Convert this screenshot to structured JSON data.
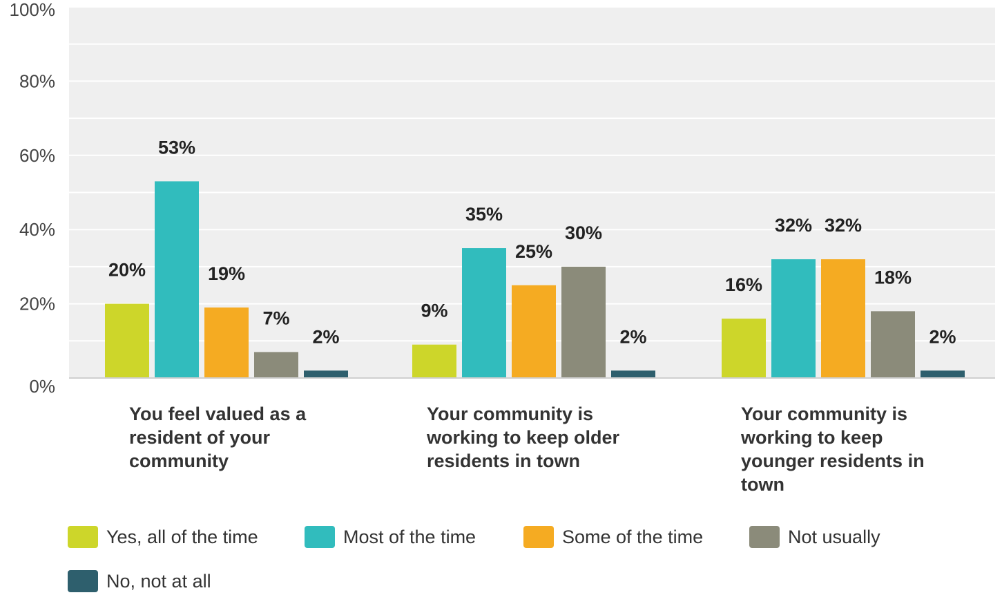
{
  "chart_data": {
    "type": "bar",
    "categories": [
      "You feel valued as a resident of your community",
      "Your community is working to keep older residents in town",
      "Your community is working to keep younger residents in town"
    ],
    "category_lines": [
      [
        "You feel valued as a",
        "resident of your",
        "community"
      ],
      [
        "Your community is",
        "working to keep older",
        "residents in town"
      ],
      [
        "Your community is",
        "working to keep",
        "younger residents in",
        "town"
      ]
    ],
    "series": [
      {
        "name": "Yes, all of the time",
        "color": "#cdd62a",
        "values": [
          20,
          9,
          16
        ]
      },
      {
        "name": "Most of the time",
        "color": "#31bcbd",
        "values": [
          53,
          35,
          32
        ]
      },
      {
        "name": "Some of the time",
        "color": "#f5ab22",
        "values": [
          19,
          25,
          32
        ]
      },
      {
        "name": "Not usually",
        "color": "#8b8b7a",
        "values": [
          7,
          30,
          18
        ]
      },
      {
        "name": "No, not at all",
        "color": "#2e5f6d",
        "values": [
          2,
          2,
          2
        ]
      }
    ],
    "value_labels": [
      [
        "20%",
        "9%",
        "16%"
      ],
      [
        "53%",
        "35%",
        "32%"
      ],
      [
        "19%",
        "25%",
        "32%"
      ],
      [
        "7%",
        "30%",
        "18%"
      ],
      [
        "2%",
        "2%",
        "2%"
      ]
    ],
    "yticks": [
      "0%",
      "20%",
      "40%",
      "60%",
      "80%",
      "100%"
    ],
    "ylim": [
      0,
      100
    ],
    "grid": true,
    "legend_position": "bottom",
    "title": "",
    "xlabel": "",
    "ylabel": ""
  }
}
